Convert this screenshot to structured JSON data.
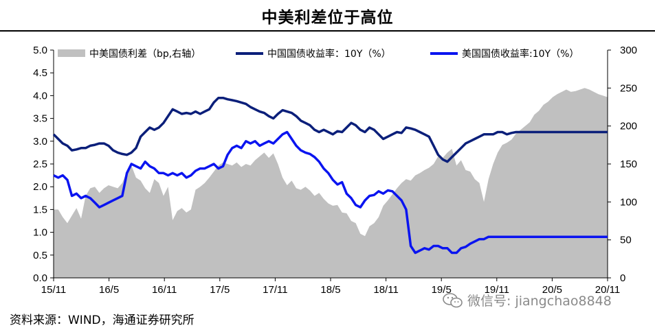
{
  "title": "中美利差位于高位",
  "source": "资料来源：WIND，海通证券研究所",
  "watermark": "微信号: jiangchao8848",
  "chart_data": {
    "type": "line",
    "title": "中美利差位于高位",
    "left_axis": {
      "min": 0.0,
      "max": 5.0,
      "ticks": [
        "0.0",
        "0.5",
        "1.0",
        "1.5",
        "2.0",
        "2.5",
        "3.0",
        "3.5",
        "4.0",
        "4.5",
        "5.0"
      ]
    },
    "right_axis": {
      "min": 0,
      "max": 300,
      "ticks": [
        "0",
        "50",
        "100",
        "150",
        "200",
        "250",
        "300"
      ]
    },
    "x_ticks": [
      "15/11",
      "16/5",
      "16/11",
      "17/5",
      "17/11",
      "18/5",
      "18/11",
      "19/5",
      "19/11",
      "20/5",
      "20/11"
    ],
    "x_range": [
      "15/11",
      "20/11"
    ],
    "legend_position": "top",
    "colors": {
      "spread": "#c0c0c0",
      "china": "#0b1f7a",
      "us": "#0a14f0"
    },
    "series": [
      {
        "name": "中美国债利差（bp,右轴）",
        "kind": "area",
        "axis": "right",
        "x": [
          0,
          0.5,
          1,
          1.5,
          2,
          2.5,
          3,
          3.5,
          4,
          4.5,
          5,
          5.5,
          6,
          6.5,
          7,
          7.5,
          8,
          8.5,
          9,
          9.5,
          10,
          10.5,
          11,
          11.5,
          12,
          12.5,
          13,
          13.5,
          14,
          14.5,
          15,
          15.5,
          16,
          16.5,
          17,
          17.5,
          18,
          18.5,
          19,
          19.5,
          20,
          20.5,
          21,
          21.5,
          22,
          22.5,
          23,
          23.5,
          24,
          24.5,
          25,
          25.5,
          26,
          26.5,
          27,
          27.5,
          28,
          28.5,
          29,
          29.5,
          30,
          30.5,
          31,
          31.5,
          32,
          32.5,
          33,
          33.5,
          34,
          34.5,
          35,
          35.5,
          36,
          36.5,
          37,
          37.5,
          38,
          38.5,
          39,
          39.5,
          40,
          40.5,
          41,
          41.5,
          42,
          42.5,
          43,
          43.5,
          44,
          44.5,
          45,
          45.5,
          46,
          46.5,
          47,
          47.5,
          48,
          48.5,
          49,
          49.5,
          50,
          50.5,
          51,
          51.5,
          52,
          52.5,
          53,
          53.5,
          54,
          54.5,
          55,
          55.5,
          56,
          56.5,
          57,
          57.5,
          58,
          58.5,
          59,
          59.5,
          60,
          60.5
        ],
        "y": [
          90,
          90,
          80,
          72,
          82,
          92,
          78,
          108,
          118,
          120,
          112,
          118,
          122,
          120,
          118,
          125,
          140,
          148,
          132,
          128,
          118,
          112,
          130,
          125,
          108,
          120,
          76,
          88,
          92,
          86,
          90,
          116,
          120,
          125,
          132,
          140,
          148,
          152,
          150,
          148,
          152,
          146,
          150,
          148,
          155,
          160,
          165,
          158,
          164,
          150,
          132,
          122,
          128,
          118,
          116,
          120,
          115,
          108,
          112,
          104,
          98,
          95,
          96,
          86,
          85,
          75,
          72,
          58,
          55,
          68,
          72,
          80,
          95,
          102,
          110,
          118,
          125,
          130,
          128,
          135,
          138,
          142,
          145,
          150,
          160,
          158,
          165,
          170,
          148,
          155,
          142,
          140,
          130,
          125,
          100,
          130,
          150,
          165,
          175,
          178,
          182,
          190,
          195,
          200,
          205,
          215,
          220,
          228,
          232,
          238,
          242,
          245,
          248,
          245,
          246,
          248,
          250,
          248,
          245,
          242,
          240,
          238
        ]
      },
      {
        "name": "中国国债收益率：10Y（%）",
        "kind": "line",
        "axis": "left",
        "x": [
          0,
          0.5,
          1,
          1.5,
          2,
          2.5,
          3,
          3.5,
          4,
          4.5,
          5,
          5.5,
          6,
          6.5,
          7,
          7.5,
          8,
          8.5,
          9,
          9.5,
          10,
          10.5,
          11,
          11.5,
          12,
          12.5,
          13,
          13.5,
          14,
          14.5,
          15,
          15.5,
          16,
          16.5,
          17,
          17.5,
          18,
          18.5,
          19,
          19.5,
          20,
          20.5,
          21,
          21.5,
          22,
          22.5,
          23,
          23.5,
          24,
          24.5,
          25,
          25.5,
          26,
          26.5,
          27,
          27.5,
          28,
          28.5,
          29,
          29.5,
          30,
          30.5,
          31,
          31.5,
          32,
          32.5,
          33,
          33.5,
          34,
          34.5,
          35,
          35.5,
          36,
          36.5,
          37,
          37.5,
          38,
          38.5,
          39,
          39.5,
          40,
          40.5,
          41,
          41.5,
          42,
          42.5,
          43,
          43.5,
          44,
          44.5,
          45,
          45.5,
          46,
          46.5,
          47,
          47.5,
          48,
          48.5,
          49,
          49.5,
          50,
          50.5,
          51,
          51.5,
          52,
          52.5,
          53,
          53.5,
          54,
          54.5,
          55,
          55.5,
          56,
          56.5,
          57,
          57.5,
          58,
          58.5,
          59,
          59.5,
          60,
          60.5
        ],
        "y": [
          3.15,
          3.05,
          2.95,
          2.9,
          2.8,
          2.82,
          2.85,
          2.85,
          2.9,
          2.92,
          2.95,
          2.95,
          2.9,
          2.8,
          2.75,
          2.72,
          2.7,
          2.75,
          2.85,
          3.1,
          3.2,
          3.3,
          3.25,
          3.3,
          3.4,
          3.55,
          3.7,
          3.65,
          3.6,
          3.62,
          3.6,
          3.65,
          3.6,
          3.65,
          3.7,
          3.85,
          3.95,
          3.95,
          3.92,
          3.9,
          3.88,
          3.85,
          3.82,
          3.75,
          3.7,
          3.65,
          3.62,
          3.55,
          3.5,
          3.6,
          3.68,
          3.65,
          3.62,
          3.55,
          3.45,
          3.4,
          3.35,
          3.25,
          3.2,
          3.25,
          3.2,
          3.15,
          3.22,
          3.2,
          3.3,
          3.4,
          3.35,
          3.25,
          3.2,
          3.3,
          3.25,
          3.15,
          3.05,
          3.1,
          3.15,
          3.2,
          3.18,
          3.3,
          3.28,
          3.25,
          3.2,
          3.15,
          3.1,
          2.9,
          2.7,
          2.6,
          2.55,
          2.65,
          2.75,
          2.85,
          2.95,
          3.0,
          3.05,
          3.1,
          3.15,
          3.15,
          3.15,
          3.2,
          3.2,
          3.15,
          3.18,
          3.2,
          3.2,
          3.2,
          3.2,
          3.2,
          3.2,
          3.2,
          3.2,
          3.2,
          3.2,
          3.2,
          3.2,
          3.2,
          3.2,
          3.2,
          3.2,
          3.2,
          3.2,
          3.2,
          3.2,
          3.2
        ]
      },
      {
        "name": "美国国债收益率:10Y（%）",
        "kind": "line",
        "axis": "left",
        "x": [
          0,
          0.5,
          1,
          1.5,
          2,
          2.5,
          3,
          3.5,
          4,
          4.5,
          5,
          5.5,
          6,
          6.5,
          7,
          7.5,
          8,
          8.5,
          9,
          9.5,
          10,
          10.5,
          11,
          11.5,
          12,
          12.5,
          13,
          13.5,
          14,
          14.5,
          15,
          15.5,
          16,
          16.5,
          17,
          17.5,
          18,
          18.5,
          19,
          19.5,
          20,
          20.5,
          21,
          21.5,
          22,
          22.5,
          23,
          23.5,
          24,
          24.5,
          25,
          25.5,
          26,
          26.5,
          27,
          27.5,
          28,
          28.5,
          29,
          29.5,
          30,
          30.5,
          31,
          31.5,
          32,
          32.5,
          33,
          33.5,
          34,
          34.5,
          35,
          35.5,
          36,
          36.5,
          37,
          37.5,
          38,
          38.5,
          39,
          39.5,
          40,
          40.5,
          41,
          41.5,
          42,
          42.5,
          43,
          43.5,
          44,
          44.5,
          45,
          45.5,
          46,
          46.5,
          47,
          47.5,
          48,
          48.5,
          49,
          49.5,
          50,
          50.5,
          51,
          51.5,
          52,
          52.5,
          53,
          53.5,
          54,
          54.5,
          55,
          55.5,
          56,
          56.5,
          57,
          57.5,
          58,
          58.5,
          59,
          59.5,
          60,
          60.5
        ],
        "y": [
          2.25,
          2.2,
          2.25,
          2.15,
          1.8,
          1.85,
          1.75,
          1.8,
          1.75,
          1.65,
          1.55,
          1.6,
          1.65,
          1.7,
          1.75,
          1.8,
          2.3,
          2.5,
          2.45,
          2.4,
          2.55,
          2.45,
          2.4,
          2.3,
          2.3,
          2.25,
          2.3,
          2.25,
          2.3,
          2.2,
          2.25,
          2.35,
          2.4,
          2.4,
          2.45,
          2.5,
          2.4,
          2.45,
          2.7,
          2.85,
          2.9,
          2.85,
          3.0,
          2.95,
          3.0,
          2.9,
          2.95,
          3.0,
          2.95,
          3.05,
          3.15,
          3.2,
          3.05,
          2.9,
          2.8,
          2.75,
          2.72,
          2.65,
          2.55,
          2.4,
          2.3,
          2.15,
          2.05,
          2.1,
          1.85,
          1.75,
          1.6,
          1.55,
          1.7,
          1.8,
          1.82,
          1.9,
          1.85,
          1.92,
          1.9,
          1.8,
          1.7,
          1.5,
          0.7,
          0.55,
          0.6,
          0.65,
          0.62,
          0.7,
          0.7,
          0.65,
          0.65,
          0.55,
          0.55,
          0.65,
          0.68,
          0.75,
          0.8,
          0.85,
          0.85,
          0.9,
          0.9,
          0.9,
          0.9,
          0.9,
          0.9,
          0.9,
          0.9,
          0.9,
          0.9,
          0.9,
          0.9,
          0.9,
          0.9,
          0.9,
          0.9,
          0.9,
          0.9,
          0.9,
          0.9,
          0.9,
          0.9,
          0.9,
          0.9,
          0.9,
          0.9,
          0.9
        ]
      }
    ]
  }
}
